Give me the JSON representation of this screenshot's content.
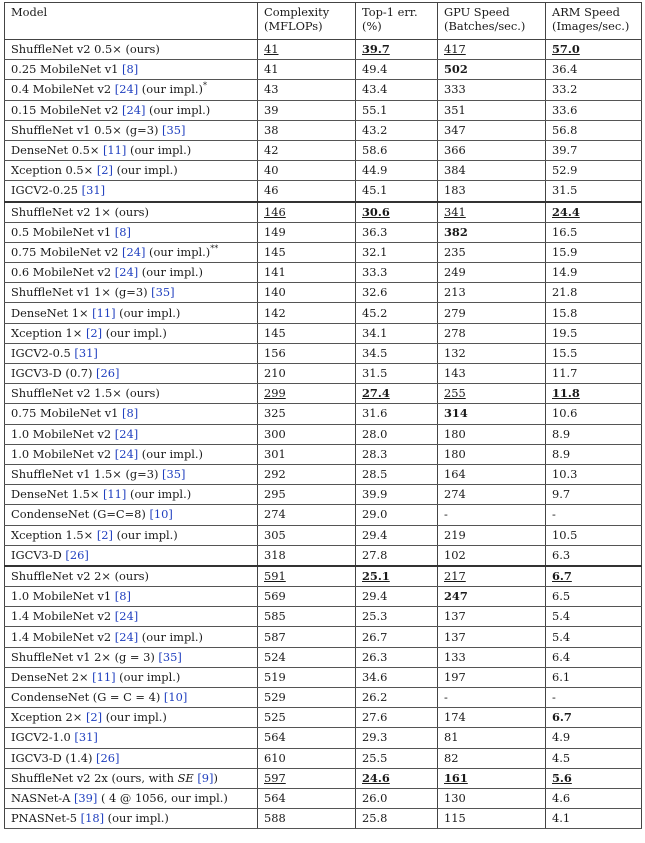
{
  "headers": {
    "model": "Model",
    "complexity_1": "Complexity",
    "complexity_2": "(MFLOPs)",
    "top1_1": "Top-1 err.",
    "top1_2": "(%)",
    "gpu_1": "GPU Speed",
    "gpu_2": "(Batches/sec.)",
    "arm_1": "ARM Speed",
    "arm_2": "(Images/sec.)"
  },
  "groups": [
    {
      "rows": [
        {
          "name": "ShuffleNet v2 0.5× (ours)",
          "ref": "",
          "suffix": "",
          "complexity": "41",
          "top1": "39.7",
          "gpu": "417",
          "arm": "57.0",
          "u_c": true,
          "b_t": true,
          "u_t": true,
          "u_g": true,
          "b_a": true,
          "u_a": true
        },
        {
          "name": "0.25 MobileNet v1 ",
          "ref": "[8]",
          "suffix": "",
          "complexity": "41",
          "top1": "49.4",
          "gpu": "502",
          "arm": "36.4",
          "b_g": true
        },
        {
          "name": "0.4 MobileNet v2 ",
          "ref": "[24]",
          "suffix": " (our impl.)",
          "sup": "*",
          "complexity": "43",
          "top1": "43.4",
          "gpu": "333",
          "arm": "33.2"
        },
        {
          "name": "0.15 MobileNet v2 ",
          "ref": "[24]",
          "suffix": " (our impl.)",
          "complexity": "39",
          "top1": "55.1",
          "gpu": "351",
          "arm": "33.6"
        },
        {
          "name": "ShuffleNet v1 0.5× (g=3) ",
          "ref": "[35]",
          "suffix": "",
          "complexity": "38",
          "top1": "43.2",
          "gpu": "347",
          "arm": "56.8"
        },
        {
          "name": "DenseNet 0.5× ",
          "ref": "[11]",
          "suffix": " (our impl.)",
          "complexity": "42",
          "top1": "58.6",
          "gpu": "366",
          "arm": "39.7"
        },
        {
          "name": "Xception 0.5× ",
          "ref": "[2]",
          "suffix": " (our impl.)",
          "complexity": "40",
          "top1": "44.9",
          "gpu": "384",
          "arm": "52.9"
        },
        {
          "name": "IGCV2-0.25 ",
          "ref": "[31]",
          "suffix": "",
          "complexity": "46",
          "top1": "45.1",
          "gpu": "183",
          "arm": "31.5"
        }
      ]
    },
    {
      "rows": [
        {
          "name": "ShuffleNet v2 1× (ours)",
          "ref": "",
          "suffix": "",
          "complexity": "146",
          "top1": "30.6",
          "gpu": "341",
          "arm": "24.4",
          "u_c": true,
          "b_t": true,
          "u_t": true,
          "u_g": true,
          "b_a": true,
          "u_a": true
        },
        {
          "name": "0.5 MobileNet v1 ",
          "ref": "[8]",
          "suffix": "",
          "complexity": "149",
          "top1": "36.3",
          "gpu": "382",
          "arm": "16.5",
          "b_g": true
        },
        {
          "name": "0.75 MobileNet v2 ",
          "ref": "[24]",
          "suffix": " (our impl.)",
          "sup": "**",
          "complexity": "145",
          "top1": "32.1",
          "gpu": "235",
          "arm": "15.9"
        },
        {
          "name": "0.6 MobileNet v2 ",
          "ref": "[24]",
          "suffix": " (our impl.)",
          "complexity": "141",
          "top1": "33.3",
          "gpu": "249",
          "arm": "14.9"
        },
        {
          "name": "ShuffleNet v1 1× (g=3) ",
          "ref": "[35]",
          "suffix": "",
          "complexity": "140",
          "top1": "32.6",
          "gpu": "213",
          "arm": "21.8"
        },
        {
          "name": "DenseNet 1× ",
          "ref": "[11]",
          "suffix": " (our impl.)",
          "complexity": "142",
          "top1": "45.2",
          "gpu": "279",
          "arm": "15.8"
        },
        {
          "name": "Xception 1× ",
          "ref": "[2]",
          "suffix": " (our impl.)",
          "complexity": "145",
          "top1": "34.1",
          "gpu": "278",
          "arm": "19.5"
        },
        {
          "name": "IGCV2-0.5 ",
          "ref": "[31]",
          "suffix": "",
          "complexity": "156",
          "top1": "34.5",
          "gpu": "132",
          "arm": "15.5"
        },
        {
          "name": "IGCV3-D (0.7) ",
          "ref": "[26]",
          "suffix": "",
          "complexity": "210",
          "top1": "31.5",
          "gpu": "143",
          "arm": "11.7"
        },
        {
          "name": "ShuffleNet v2 1.5× (ours)",
          "ref": "",
          "suffix": "",
          "complexity": "299",
          "top1": "27.4",
          "gpu": "255",
          "arm": "11.8",
          "u_c": true,
          "b_t": true,
          "u_t": true,
          "u_g": true,
          "b_a": true,
          "u_a": true
        },
        {
          "name": "0.75 MobileNet v1 ",
          "ref": "[8]",
          "suffix": "",
          "complexity": "325",
          "top1": "31.6",
          "gpu": "314",
          "arm": "10.6",
          "b_g": true
        },
        {
          "name": "1.0 MobileNet v2 ",
          "ref": "[24]",
          "suffix": "",
          "complexity": "300",
          "top1": "28.0",
          "gpu": "180",
          "arm": "8.9"
        },
        {
          "name": "1.0 MobileNet v2 ",
          "ref": "[24]",
          "suffix": " (our impl.)",
          "complexity": "301",
          "top1": "28.3",
          "gpu": "180",
          "arm": "8.9"
        },
        {
          "name": "ShuffleNet v1 1.5× (g=3) ",
          "ref": "[35]",
          "suffix": "",
          "complexity": "292",
          "top1": "28.5",
          "gpu": "164",
          "arm": "10.3"
        },
        {
          "name": "DenseNet 1.5× ",
          "ref": "[11]",
          "suffix": " (our impl.)",
          "complexity": "295",
          "top1": "39.9",
          "gpu": "274",
          "arm": "9.7"
        },
        {
          "name": "CondenseNet (G=C=8) ",
          "ref": "[10]",
          "suffix": "",
          "complexity": "274",
          "top1": "29.0",
          "gpu": "-",
          "arm": "-"
        },
        {
          "name": "Xception 1.5× ",
          "ref": "[2]",
          "suffix": " (our impl.)",
          "complexity": "305",
          "top1": "29.4",
          "gpu": "219",
          "arm": "10.5"
        },
        {
          "name": "IGCV3-D ",
          "ref": "[26]",
          "suffix": "",
          "complexity": "318",
          "top1": "27.8",
          "gpu": "102",
          "arm": "6.3"
        }
      ]
    },
    {
      "rows": [
        {
          "name": "ShuffleNet v2 2× (ours)",
          "ref": "",
          "suffix": "",
          "complexity": "591",
          "top1": "25.1",
          "gpu": "217",
          "arm": "6.7",
          "u_c": true,
          "b_t": true,
          "u_t": true,
          "u_g": true,
          "b_a": true,
          "u_a": true
        },
        {
          "name": "1.0 MobileNet v1 ",
          "ref": "[8]",
          "suffix": "",
          "complexity": "569",
          "top1": "29.4",
          "gpu": "247",
          "arm": "6.5",
          "b_g": true
        },
        {
          "name": "1.4 MobileNet v2 ",
          "ref": "[24]",
          "suffix": "",
          "complexity": "585",
          "top1": "25.3",
          "gpu": "137",
          "arm": "5.4"
        },
        {
          "name": "1.4 MobileNet v2 ",
          "ref": "[24]",
          "suffix": " (our impl.)",
          "complexity": "587",
          "top1": "26.7",
          "gpu": "137",
          "arm": "5.4"
        },
        {
          "name": "ShuffleNet v1 2× (g = 3) ",
          "ref": "[35]",
          "suffix": "",
          "complexity": "524",
          "top1": "26.3",
          "gpu": "133",
          "arm": "6.4"
        },
        {
          "name": "DenseNet 2× ",
          "ref": "[11]",
          "suffix": " (our impl.)",
          "complexity": "519",
          "top1": "34.6",
          "gpu": "197",
          "arm": "6.1"
        },
        {
          "name": "CondenseNet (G = C = 4) ",
          "ref": "[10]",
          "suffix": "",
          "complexity": "529",
          "top1": "26.2",
          "gpu": "-",
          "arm": "-"
        },
        {
          "name": "Xception 2× ",
          "ref": "[2]",
          "suffix": " (our impl.)",
          "complexity": "525",
          "top1": "27.6",
          "gpu": "174",
          "arm": "6.7",
          "b_a": true
        },
        {
          "name": "IGCV2-1.0 ",
          "ref": "[31]",
          "suffix": "",
          "complexity": "564",
          "top1": "29.3",
          "gpu": "81",
          "arm": "4.9"
        },
        {
          "name": "IGCV3-D (1.4) ",
          "ref": "[26]",
          "suffix": "",
          "complexity": "610",
          "top1": "25.5",
          "gpu": "82",
          "arm": "4.5"
        },
        {
          "name": "ShuffleNet v2 2x (ours, with SE ",
          "ref": "[9]",
          "suffix": ")",
          "se": true,
          "complexity": "597",
          "top1": "24.6",
          "gpu": "161",
          "arm": "5.6",
          "u_c": true,
          "b_t": true,
          "u_t": true,
          "b_g": true,
          "u_g": true,
          "b_a": true,
          "u_a": true
        },
        {
          "name": "NASNet-A ",
          "ref": "[39]",
          "suffix": " ( 4 @ 1056, our impl.)",
          "complexity": "564",
          "top1": "26.0",
          "gpu": "130",
          "arm": "4.6"
        },
        {
          "name": "PNASNet-5 ",
          "ref": "[18]",
          "suffix": " (our impl.)",
          "complexity": "588",
          "top1": "25.8",
          "gpu": "115",
          "arm": "4.1"
        }
      ]
    }
  ]
}
